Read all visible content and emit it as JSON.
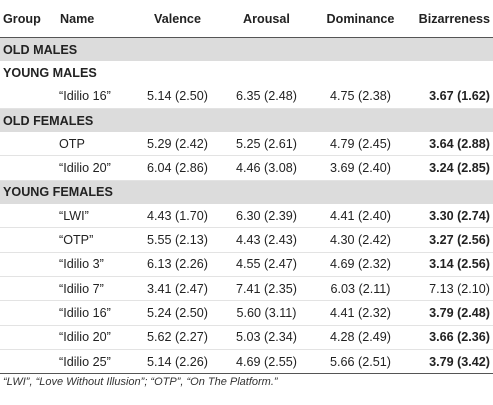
{
  "headers": [
    "Group",
    "Name",
    "Valence",
    "Arousal",
    "Dominance",
    "Bizarreness"
  ],
  "groups": [
    {
      "label": "OLD MALES",
      "shaded": true,
      "rows": []
    },
    {
      "label": "YOUNG MALES",
      "shaded": false,
      "rows": [
        {
          "name": "“Idilio 16”",
          "valence": "5.14 (2.50)",
          "arousal": "6.35 (2.48)",
          "dominance": "4.75 (2.38)",
          "bizarreness": "3.67 (1.62)",
          "bold": true
        }
      ]
    },
    {
      "label": "OLD FEMALES",
      "shaded": true,
      "rows": [
        {
          "name": "OTP",
          "valence": "5.29 (2.42)",
          "arousal": "5.25 (2.61)",
          "dominance": "4.79 (2.45)",
          "bizarreness": "3.64 (2.88)",
          "bold": true
        },
        {
          "name": "“Idilio 20”",
          "valence": "6.04 (2.86)",
          "arousal": "4.46 (3.08)",
          "dominance": "3.69 (2.40)",
          "bizarreness": "3.24 (2.85)",
          "bold": true
        }
      ]
    },
    {
      "label": "YOUNG FEMALES",
      "shaded": true,
      "rows": [
        {
          "name": "“LWI”",
          "valence": "4.43 (1.70)",
          "arousal": "6.30 (2.39)",
          "dominance": "4.41 (2.40)",
          "bizarreness": "3.30 (2.74)",
          "bold": true
        },
        {
          "name": "“OTP”",
          "valence": "5.55 (2.13)",
          "arousal": "4.43 (2.43)",
          "dominance": "4.30 (2.42)",
          "bizarreness": "3.27 (2.56)",
          "bold": true
        },
        {
          "name": "“Idilio 3”",
          "valence": "6.13 (2.26)",
          "arousal": "4.55 (2.47)",
          "dominance": "4.69 (2.32)",
          "bizarreness": "3.14 (2.56)",
          "bold": true
        },
        {
          "name": "“Idilio 7”",
          "valence": "3.41 (2.47)",
          "arousal": "7.41 (2.35)",
          "dominance": "6.03 (2.11)",
          "bizarreness": "7.13 (2.10)",
          "bold": false
        },
        {
          "name": "“Idilio 16”",
          "valence": "5.24 (2.50)",
          "arousal": "5.60 (3.11)",
          "dominance": "4.41 (2.32)",
          "bizarreness": "3.79 (2.48)",
          "bold": true
        },
        {
          "name": "“Idilio 20”",
          "valence": "5.62 (2.27)",
          "arousal": "5.03 (2.34)",
          "dominance": "4.28 (2.49)",
          "bizarreness": "3.66 (2.36)",
          "bold": true
        },
        {
          "name": "“Idilio 25”",
          "valence": "5.14 (2.26)",
          "arousal": "4.69 (2.55)",
          "dominance": "5.66 (2.51)",
          "bizarreness": "3.79 (3.42)",
          "bold": true
        }
      ]
    }
  ],
  "footnote": "“LWI”, “Love Without Illusion”; “OTP”, “On The Platform.”"
}
